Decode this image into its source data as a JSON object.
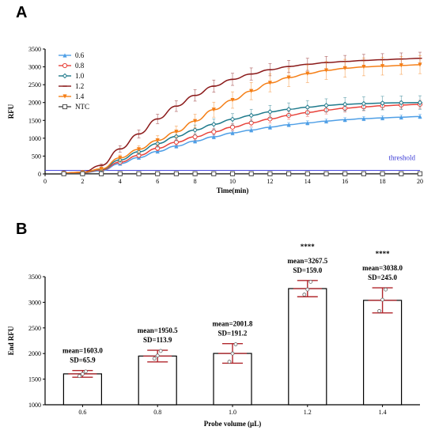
{
  "panel_a": {
    "letter": "A",
    "chart_data": {
      "type": "line",
      "xlabel": "Time(min)",
      "ylabel": "RFU",
      "xlim": [
        0,
        20
      ],
      "ylim": [
        0,
        3500
      ],
      "x_ticks": [
        "0",
        "2",
        "4",
        "6",
        "8",
        "10",
        "12",
        "14",
        "16",
        "18",
        "20"
      ],
      "y_ticks": [
        "0",
        "500",
        "1000",
        "1500",
        "2000",
        "2500",
        "3000",
        "3500"
      ],
      "threshold": {
        "label": "threshold",
        "value": 100,
        "color": "#4a4ae0"
      },
      "x": [
        1,
        2,
        3,
        4,
        5,
        6,
        7,
        8,
        9,
        10,
        11,
        12,
        13,
        14,
        15,
        16,
        17,
        18,
        19,
        20
      ],
      "series": [
        {
          "name": "0.6",
          "color": "#4f9fe6",
          "marker": "triangle",
          "values": [
            20,
            30,
            90,
            290,
            460,
            630,
            780,
            920,
            1040,
            1150,
            1230,
            1310,
            1380,
            1430,
            1480,
            1520,
            1550,
            1570,
            1590,
            1610
          ],
          "errors": [
            10,
            10,
            20,
            40,
            50,
            50,
            60,
            60,
            60,
            60,
            60,
            60,
            60,
            60,
            60,
            60,
            60,
            60,
            60,
            60
          ]
        },
        {
          "name": "0.8",
          "color": "#e8433b",
          "marker": "circle",
          "values": [
            25,
            35,
            110,
            330,
            520,
            720,
            890,
            1040,
            1180,
            1310,
            1430,
            1540,
            1640,
            1720,
            1790,
            1840,
            1880,
            1910,
            1930,
            1950
          ],
          "errors": [
            10,
            10,
            20,
            50,
            60,
            70,
            80,
            90,
            90,
            100,
            100,
            110,
            110,
            110,
            110,
            110,
            110,
            110,
            110,
            110
          ]
        },
        {
          "name": "1.0",
          "color": "#1f7a8c",
          "marker": "diamond",
          "values": [
            25,
            40,
            130,
            390,
            620,
            850,
            1050,
            1230,
            1390,
            1530,
            1640,
            1740,
            1810,
            1870,
            1920,
            1950,
            1970,
            1985,
            1995,
            2000
          ],
          "errors": [
            10,
            10,
            30,
            60,
            80,
            100,
            120,
            140,
            150,
            160,
            170,
            180,
            180,
            185,
            185,
            190,
            190,
            190,
            190,
            190
          ]
        },
        {
          "name": "1.2",
          "color": "#8b1a1a",
          "marker": "line",
          "values": [
            30,
            50,
            240,
            700,
            1120,
            1540,
            1900,
            2200,
            2460,
            2650,
            2800,
            2920,
            3010,
            3070,
            3120,
            3150,
            3180,
            3200,
            3220,
            3240
          ],
          "errors": [
            10,
            10,
            40,
            90,
            110,
            130,
            150,
            160,
            170,
            170,
            170,
            170,
            170,
            170,
            170,
            170,
            170,
            170,
            170,
            170
          ]
        },
        {
          "name": "1.4",
          "color": "#f57f17",
          "marker": "inverted-triangle",
          "values": [
            25,
            45,
            140,
            450,
            690,
            940,
            1180,
            1480,
            1800,
            2070,
            2320,
            2550,
            2700,
            2810,
            2900,
            2960,
            3000,
            3020,
            3040,
            3060
          ],
          "errors": [
            10,
            10,
            40,
            80,
            100,
            130,
            160,
            190,
            210,
            230,
            240,
            250,
            250,
            250,
            250,
            250,
            250,
            250,
            250,
            250
          ]
        },
        {
          "name": "NTC",
          "color": "#4d4d4d",
          "marker": "square",
          "values": [
            5,
            5,
            5,
            5,
            5,
            5,
            5,
            5,
            5,
            5,
            5,
            5,
            5,
            5,
            5,
            5,
            5,
            5,
            5,
            5
          ],
          "errors": [
            0,
            0,
            0,
            0,
            0,
            0,
            0,
            0,
            0,
            0,
            0,
            0,
            0,
            0,
            0,
            0,
            0,
            0,
            0,
            0
          ]
        }
      ]
    }
  },
  "panel_b": {
    "letter": "B",
    "chart_data": {
      "type": "bar",
      "xlabel": "Probe volume (µL)",
      "ylabel": "End RFU",
      "ylim": [
        1000,
        3500
      ],
      "y_ticks": [
        "1000",
        "1500",
        "2000",
        "2500",
        "3000",
        "3500"
      ],
      "categories": [
        "0.6",
        "0.8",
        "1.0",
        "1.2",
        "1.4"
      ],
      "values": [
        1603.0,
        1950.5,
        2001.8,
        3267.5,
        3038.0
      ],
      "sd": [
        65.9,
        113.9,
        191.2,
        159.0,
        245.0
      ],
      "points": [
        [
          1560,
          1600,
          1650
        ],
        [
          1900,
          1960,
          2050
        ],
        [
          1840,
          2000,
          2180
        ],
        [
          3150,
          3250,
          3400
        ],
        [
          2830,
          3050,
          3250
        ]
      ],
      "mean_labels": [
        "mean=1603.0",
        "mean=1950.5",
        "mean=2001.8",
        "mean=3267.5",
        "mean=3038.0"
      ],
      "sd_labels": [
        "SD=65.9",
        "SD=113.9",
        "SD=191.2",
        "SD=159.0",
        "SD=245.0"
      ],
      "significance": [
        "",
        "",
        "",
        "****",
        "****"
      ],
      "bar_color": "#ffffff",
      "error_color": "#b0262c"
    }
  }
}
